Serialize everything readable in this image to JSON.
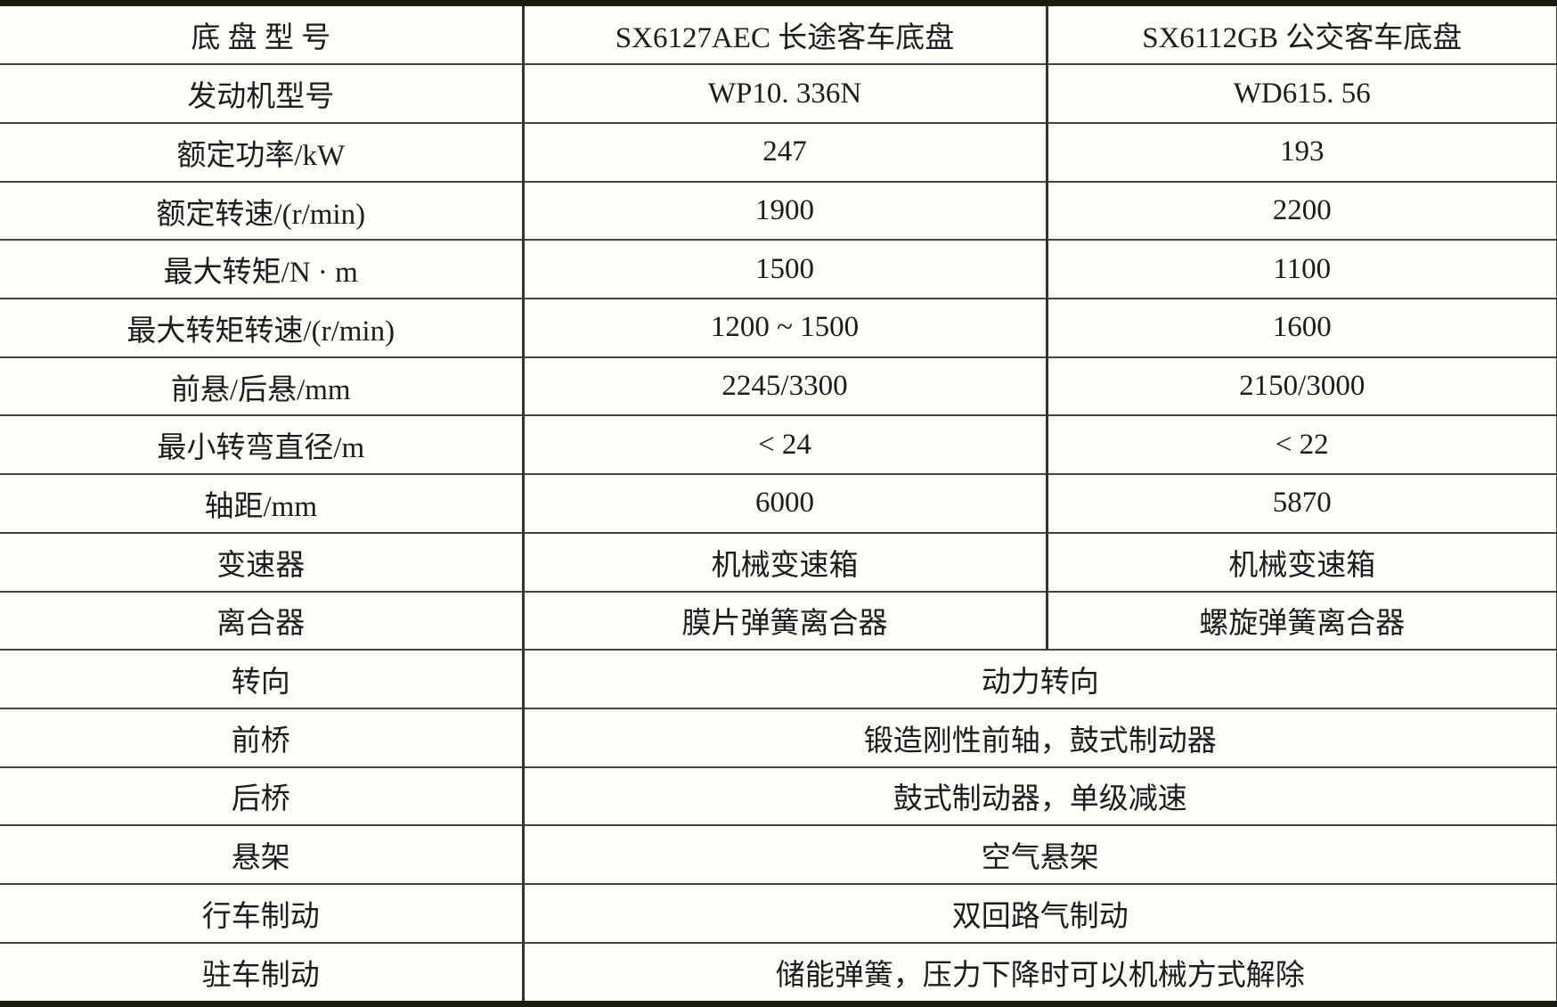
{
  "colors": {
    "outer_border": "#1b1b10",
    "inner_border": "#45453a",
    "background": "#fdfdfa",
    "text": "#1c1c1c"
  },
  "header": {
    "chassis_label": "底 盘 型 号",
    "model_a": "SX6127AEC 长途客车底盘",
    "model_b": "SX6112GB 公交客车底盘"
  },
  "rows": [
    {
      "label": "发动机型号",
      "a": "WP10. 336N",
      "b": "WD615. 56"
    },
    {
      "label": "额定功率/kW",
      "a": "247",
      "b": "193"
    },
    {
      "label": "额定转速/(r/min)",
      "a": "1900",
      "b": "2200"
    },
    {
      "label": "最大转矩/N · m",
      "a": "1500",
      "b": "1100"
    },
    {
      "label": "最大转矩转速/(r/min)",
      "a": "1200 ~ 1500",
      "b": "1600"
    },
    {
      "label": "前悬/后悬/mm",
      "a": "2245/3300",
      "b": "2150/3000"
    },
    {
      "label": "最小转弯直径/m",
      "a": "< 24",
      "b": "< 22"
    },
    {
      "label": "轴距/mm",
      "a": "6000",
      "b": "5870"
    },
    {
      "label": "变速器",
      "a": "机械变速箱",
      "b": "机械变速箱"
    },
    {
      "label": "离合器",
      "a": "膜片弹簧离合器",
      "b": "螺旋弹簧离合器"
    }
  ],
  "merged_rows": [
    {
      "label": "转向",
      "value": "动力转向"
    },
    {
      "label": "前桥",
      "value": "锻造刚性前轴，鼓式制动器"
    },
    {
      "label": "后桥",
      "value": "鼓式制动器，单级减速"
    },
    {
      "label": "悬架",
      "value": "空气悬架"
    },
    {
      "label": "行车制动",
      "value": "双回路气制动"
    },
    {
      "label": "驻车制动",
      "value": "储能弹簧，压力下降时可以机械方式解除"
    }
  ]
}
